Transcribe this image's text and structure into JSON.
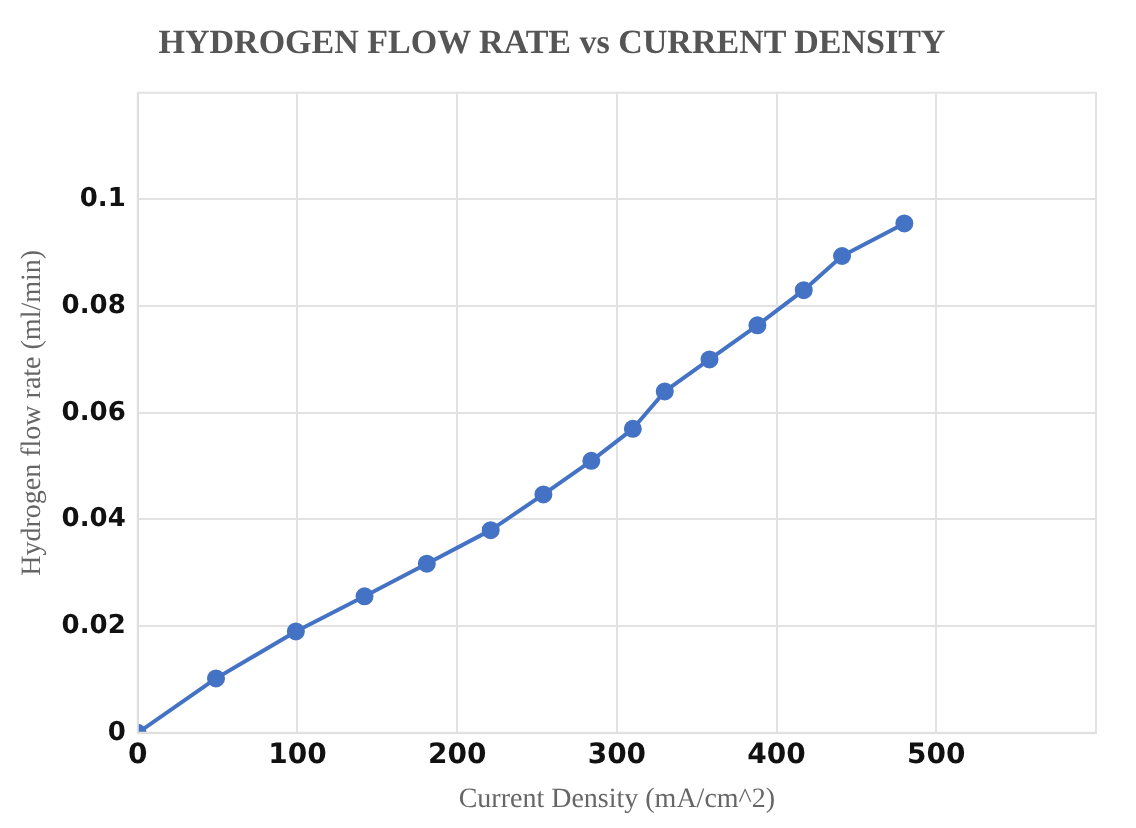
{
  "chart_data": {
    "type": "line",
    "title": "HYDROGEN FLOW RATE vs CURRENT DENSITY",
    "xlabel": "Current Density (mA/cm^2)",
    "ylabel": "Hydrogen flow rate (ml/min)",
    "x": [
      0,
      49,
      99,
      142,
      181,
      221,
      254,
      284,
      310,
      330,
      358,
      388,
      417,
      441,
      480
    ],
    "series": [
      {
        "color": "#4472c4",
        "values": [
          0,
          0.0102,
          0.019,
          0.0256,
          0.0317,
          0.038,
          0.0447,
          0.051,
          0.057,
          0.064,
          0.07,
          0.0764,
          0.083,
          0.0894,
          0.0955
        ]
      }
    ],
    "xlim": [
      0,
      600
    ],
    "xticks": [
      0,
      100,
      200,
      300,
      400,
      500
    ],
    "ylim": [
      0,
      0.12
    ],
    "yticks": [
      0,
      0.02,
      0.04,
      0.06,
      0.08,
      0.1
    ],
    "grid": true,
    "marker": "circle",
    "line_style": "solid"
  }
}
